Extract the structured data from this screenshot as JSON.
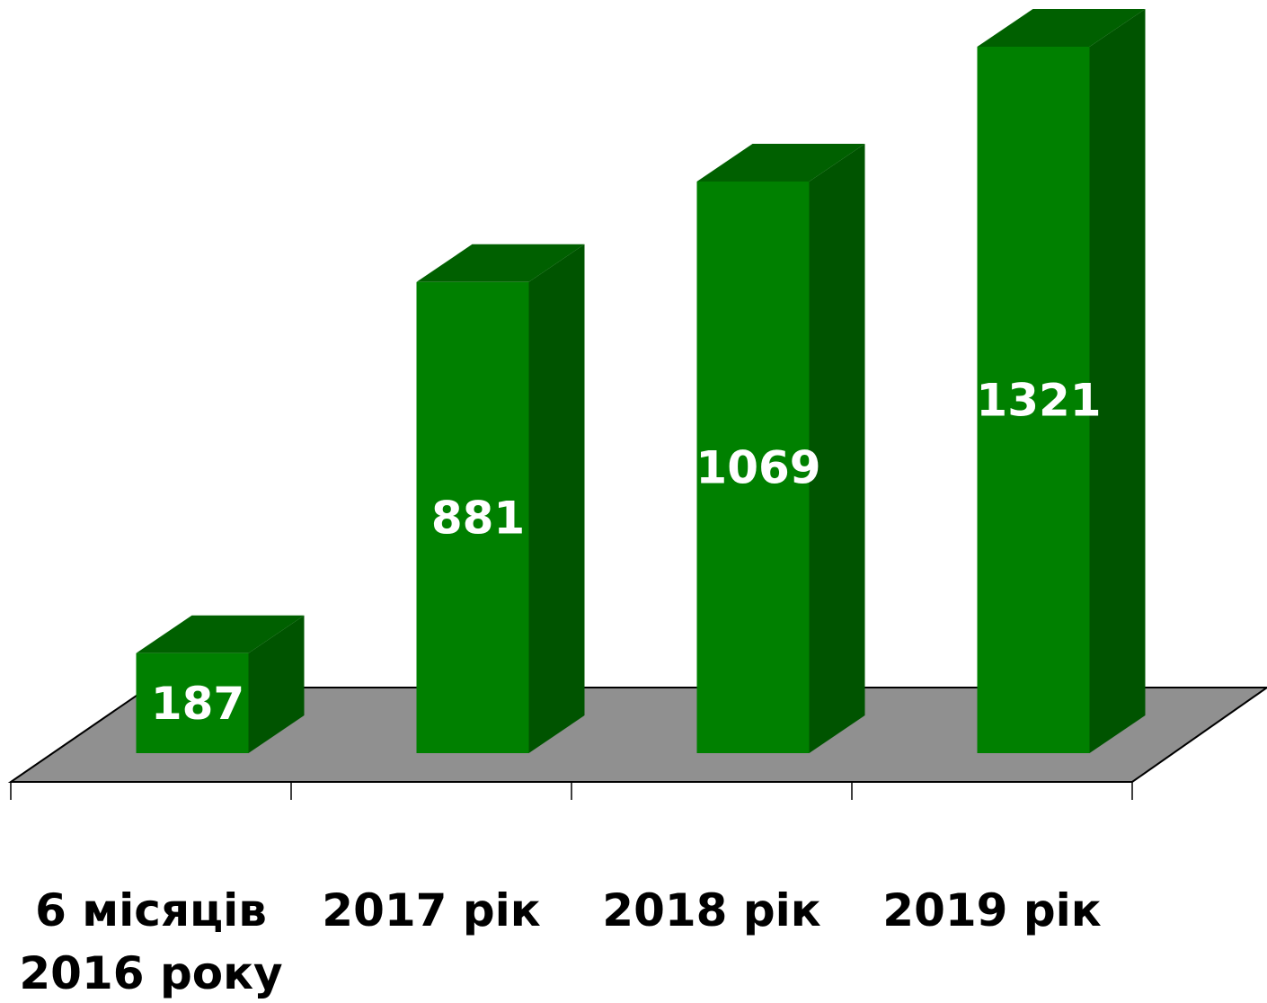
{
  "chart_data": {
    "type": "bar3d",
    "categories": [
      "6 місяців 2016 року",
      "2017 рік",
      "2018 рік",
      "2019 рік"
    ],
    "values": [
      187,
      881,
      1069,
      1321
    ],
    "color": "#008000"
  }
}
